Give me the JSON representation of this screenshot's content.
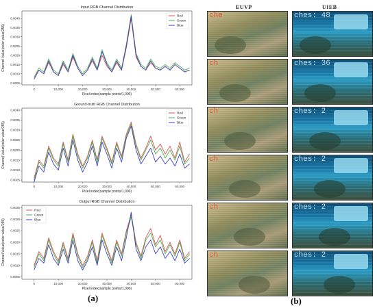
{
  "panel_labels": {
    "a": "(a)",
    "b": "(b)"
  },
  "grid": {
    "columns": [
      "EUVP",
      "UIEB"
    ],
    "rows": [
      {
        "euvp_overlay": "che",
        "uieb_overlay": "ches: 48"
      },
      {
        "euvp_overlay": "ch",
        "uieb_overlay": "ches: 36"
      },
      {
        "euvp_overlay": "ch",
        "uieb_overlay": "ches: 2"
      },
      {
        "euvp_overlay": "ch",
        "uieb_overlay": "ches: 2"
      },
      {
        "euvp_overlay": "ch",
        "uieb_overlay": "ches: 2"
      },
      {
        "euvp_overlay": "ch",
        "uieb_overlay": "ches: 2"
      }
    ]
  },
  "chart_data": [
    {
      "type": "line",
      "title": "Input RGB Channel Distribution",
      "xlabel": "Pixel index(sample points/1,000)",
      "ylabel": "Channel Value(color value/255)",
      "xlim": [
        -5000,
        65000
      ],
      "ylim": [
        0.0004,
        0.0044
      ],
      "xticks": [
        "0",
        "10,000",
        "20,000",
        "30,000",
        "40,000",
        "50,000",
        "60,000"
      ],
      "yticks": [
        "0.0005",
        "0.0010",
        "0.0015",
        "0.0020",
        "0.0025",
        "0.0030",
        "0.0035",
        "0.0040"
      ],
      "legend": "top-right",
      "x": [
        0,
        2000,
        4000,
        6000,
        8000,
        10000,
        12000,
        14000,
        16000,
        18000,
        20000,
        22000,
        24000,
        26000,
        28000,
        30000,
        32000,
        34000,
        36000,
        38000,
        40000,
        42000,
        44000,
        46000,
        48000,
        50000,
        52000,
        54000,
        56000,
        58000,
        60000,
        62000,
        64000
      ],
      "series": [
        {
          "name": "Red",
          "color": "#d9534f",
          "values": [
            0.0008,
            0.0012,
            0.001,
            0.0016,
            0.0011,
            0.0009,
            0.0015,
            0.0011,
            0.0019,
            0.0013,
            0.0009,
            0.0012,
            0.0017,
            0.0012,
            0.002,
            0.0014,
            0.0011,
            0.0016,
            0.0012,
            0.0024,
            0.004,
            0.0019,
            0.0014,
            0.0012,
            0.0016,
            0.0013,
            0.0012,
            0.0014,
            0.0012,
            0.0015,
            0.0013,
            0.0011,
            0.0012
          ]
        },
        {
          "name": "Green",
          "color": "#4caf50",
          "values": [
            0.0008,
            0.0013,
            0.0011,
            0.0018,
            0.0012,
            0.001,
            0.0017,
            0.0012,
            0.0021,
            0.0014,
            0.001,
            0.0013,
            0.0019,
            0.0013,
            0.0023,
            0.0016,
            0.0012,
            0.0018,
            0.0013,
            0.0026,
            0.0042,
            0.0021,
            0.0015,
            0.0013,
            0.0018,
            0.0014,
            0.0013,
            0.0015,
            0.0013,
            0.0016,
            0.0014,
            0.0012,
            0.0013
          ]
        },
        {
          "name": "Blue",
          "color": "#3f3fbf",
          "values": [
            0.0007,
            0.0012,
            0.001,
            0.0017,
            0.0011,
            0.0009,
            0.0016,
            0.0011,
            0.002,
            0.0013,
            0.0009,
            0.0012,
            0.0018,
            0.0012,
            0.0022,
            0.0015,
            0.0011,
            0.0017,
            0.0012,
            0.0025,
            0.0041,
            0.002,
            0.0014,
            0.0012,
            0.0017,
            0.0013,
            0.0012,
            0.0014,
            0.0012,
            0.0015,
            0.0013,
            0.0011,
            0.0012
          ]
        }
      ]
    },
    {
      "type": "line",
      "title": "Ground-truth RGB Channel Distribution",
      "xlabel": "Pixel index(sample points/1,000)",
      "ylabel": "Channel Value(color value/255)",
      "xlim": [
        -5000,
        65000
      ],
      "ylim": [
        0.0004,
        0.0041
      ],
      "xticks": [
        "0",
        "10,000",
        "20,000",
        "30,000",
        "40,000",
        "50,000",
        "60,000"
      ],
      "yticks": [
        "0.0005",
        "0.0010",
        "0.0015",
        "0.0020",
        "0.0025",
        "0.0030",
        "0.0035",
        "0.0040"
      ],
      "legend": "top-right",
      "x": [
        0,
        2000,
        4000,
        6000,
        8000,
        10000,
        12000,
        14000,
        16000,
        18000,
        20000,
        22000,
        24000,
        26000,
        28000,
        30000,
        32000,
        34000,
        36000,
        38000,
        40000,
        42000,
        44000,
        46000,
        48000,
        50000,
        52000,
        54000,
        56000,
        58000,
        60000,
        62000,
        64000
      ],
      "series": [
        {
          "name": "Red",
          "color": "#d9534f",
          "values": [
            0.0006,
            0.0015,
            0.0012,
            0.0022,
            0.0016,
            0.0013,
            0.0024,
            0.0015,
            0.0028,
            0.0018,
            0.0012,
            0.0017,
            0.0025,
            0.0015,
            0.0027,
            0.0021,
            0.0014,
            0.0024,
            0.0017,
            0.0028,
            0.0034,
            0.0023,
            0.0016,
            0.0021,
            0.0027,
            0.002,
            0.0023,
            0.0018,
            0.0022,
            0.0016,
            0.0024,
            0.0014,
            0.0018
          ]
        },
        {
          "name": "Green",
          "color": "#4caf50",
          "values": [
            0.0005,
            0.0014,
            0.0011,
            0.0021,
            0.0015,
            0.0012,
            0.0023,
            0.0014,
            0.0027,
            0.0017,
            0.0011,
            0.0016,
            0.0024,
            0.0014,
            0.0026,
            0.002,
            0.0013,
            0.0023,
            0.0016,
            0.0027,
            0.0033,
            0.0022,
            0.0015,
            0.002,
            0.0025,
            0.0018,
            0.0021,
            0.0016,
            0.002,
            0.0015,
            0.0022,
            0.0013,
            0.0016
          ]
        },
        {
          "name": "Blue",
          "color": "#3f3fbf",
          "values": [
            0.0004,
            0.0012,
            0.0009,
            0.0019,
            0.0013,
            0.001,
            0.0021,
            0.0012,
            0.0025,
            0.0015,
            0.0009,
            0.0014,
            0.0022,
            0.0012,
            0.0024,
            0.0018,
            0.0011,
            0.0021,
            0.0014,
            0.0026,
            0.0032,
            0.002,
            0.0013,
            0.0017,
            0.0021,
            0.0014,
            0.0017,
            0.0013,
            0.0016,
            0.0012,
            0.0018,
            0.0011,
            0.0013
          ]
        }
      ]
    },
    {
      "type": "line",
      "title": "Output RGB Channel Distribution",
      "xlabel": "Pixel index(sample points/1,000)",
      "ylabel": "Channel Value(color value/255)",
      "xlim": [
        -5000,
        65000
      ],
      "ylim": [
        0.0004,
        0.0036
      ],
      "xticks": [
        "0",
        "10,000",
        "20,000",
        "30,000",
        "40,000",
        "50,000",
        "60,000"
      ],
      "yticks": [
        "0.0005",
        "0.0010",
        "0.0015",
        "0.0020",
        "0.0025",
        "0.0030",
        "0.0035"
      ],
      "legend": "top-left",
      "x": [
        0,
        2000,
        4000,
        6000,
        8000,
        10000,
        12000,
        14000,
        16000,
        18000,
        20000,
        22000,
        24000,
        26000,
        28000,
        30000,
        32000,
        34000,
        36000,
        38000,
        40000,
        42000,
        44000,
        46000,
        48000,
        50000,
        52000,
        54000,
        56000,
        58000,
        60000,
        62000,
        64000
      ],
      "series": [
        {
          "name": "Red",
          "color": "#d9534f",
          "values": [
            0.001,
            0.0016,
            0.0013,
            0.0022,
            0.0016,
            0.0012,
            0.002,
            0.0013,
            0.0024,
            0.0015,
            0.001,
            0.0014,
            0.0021,
            0.0012,
            0.0024,
            0.0018,
            0.0012,
            0.0021,
            0.0015,
            0.0025,
            0.0032,
            0.002,
            0.0014,
            0.0022,
            0.0026,
            0.0019,
            0.0023,
            0.0016,
            0.002,
            0.0015,
            0.0021,
            0.0013,
            0.0016
          ]
        },
        {
          "name": "Green",
          "color": "#4caf50",
          "values": [
            0.0009,
            0.0015,
            0.0012,
            0.0021,
            0.0015,
            0.0011,
            0.0019,
            0.0012,
            0.0023,
            0.0014,
            0.0009,
            0.0013,
            0.002,
            0.0011,
            0.0023,
            0.0017,
            0.0011,
            0.002,
            0.0014,
            0.0024,
            0.0031,
            0.0019,
            0.0013,
            0.0021,
            0.0024,
            0.0018,
            0.0021,
            0.0015,
            0.0019,
            0.0014,
            0.002,
            0.0012,
            0.0015
          ]
        },
        {
          "name": "Blue",
          "color": "#3f3fbf",
          "values": [
            0.0008,
            0.0013,
            0.0011,
            0.0019,
            0.0013,
            0.001,
            0.0017,
            0.0011,
            0.0021,
            0.0012,
            0.0008,
            0.0012,
            0.0018,
            0.001,
            0.0021,
            0.0015,
            0.001,
            0.0018,
            0.0012,
            0.0022,
            0.0033,
            0.0017,
            0.0012,
            0.0018,
            0.0021,
            0.0015,
            0.0018,
            0.0013,
            0.0016,
            0.0012,
            0.0017,
            0.0011,
            0.0013
          ]
        }
      ]
    }
  ]
}
